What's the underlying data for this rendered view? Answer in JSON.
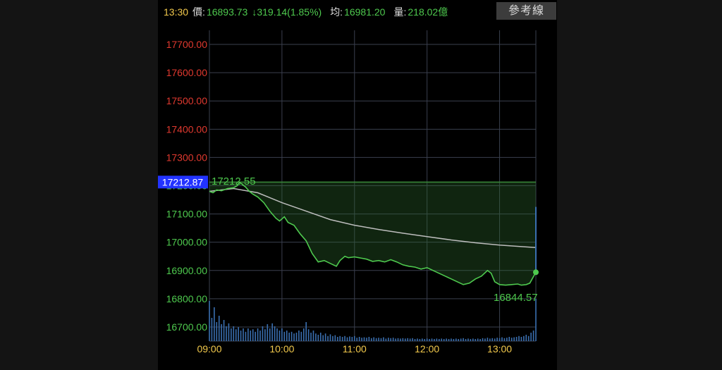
{
  "header": {
    "time": "13:30",
    "price_label": "價:",
    "price": "16893.73",
    "change": "↓319.14(1.85%)",
    "avg_label": "均:",
    "avg": "16981.20",
    "volume_label": "量:",
    "volume": "218.02億",
    "ref_button": "參考線"
  },
  "colors": {
    "up": "#e0392f",
    "down": "#4ec94e",
    "avg_line": "#bdbdbd",
    "volume_bar": "#3a6fb0",
    "ref_tag_bg": "#2233ff",
    "time_label": "#f2c94c",
    "grid": "#3a3f4e"
  },
  "chart_data": {
    "type": "line",
    "reference_price": 17212.87,
    "reference_label": "17212.87",
    "high_label": "17212.55",
    "last_label": "16844.57",
    "ylim": [
      16650,
      17750
    ],
    "y_ticks": [
      {
        "value": 17700,
        "label": "17700.00"
      },
      {
        "value": 17600,
        "label": "17600.00"
      },
      {
        "value": 17500,
        "label": "17500.00"
      },
      {
        "value": 17400,
        "label": "17400.00"
      },
      {
        "value": 17300,
        "label": "17300.00"
      },
      {
        "value": 17200,
        "label": "17200.00"
      },
      {
        "value": 17100,
        "label": "17100.00"
      },
      {
        "value": 17000,
        "label": "17000.00"
      },
      {
        "value": 16900,
        "label": "16900.00"
      },
      {
        "value": 16800,
        "label": "16800.00"
      },
      {
        "value": 16700,
        "label": "16700.00"
      }
    ],
    "x_ticks": [
      "09:00",
      "10:00",
      "11:00",
      "12:00",
      "13:00"
    ],
    "x_range_minutes": [
      0,
      270
    ],
    "price_series": [
      [
        0,
        17180
      ],
      [
        3,
        17175
      ],
      [
        6,
        17185
      ],
      [
        10,
        17182
      ],
      [
        15,
        17190
      ],
      [
        20,
        17193
      ],
      [
        23,
        17200
      ],
      [
        25,
        17212
      ],
      [
        27,
        17205
      ],
      [
        30,
        17195
      ],
      [
        33,
        17180
      ],
      [
        36,
        17170
      ],
      [
        40,
        17160
      ],
      [
        45,
        17140
      ],
      [
        50,
        17110
      ],
      [
        55,
        17085
      ],
      [
        58,
        17075
      ],
      [
        62,
        17090
      ],
      [
        65,
        17070
      ],
      [
        70,
        17060
      ],
      [
        75,
        17030
      ],
      [
        80,
        17005
      ],
      [
        85,
        16960
      ],
      [
        90,
        16930
      ],
      [
        95,
        16935
      ],
      [
        100,
        16925
      ],
      [
        105,
        16915
      ],
      [
        108,
        16935
      ],
      [
        112,
        16950
      ],
      [
        115,
        16945
      ],
      [
        120,
        16948
      ],
      [
        125,
        16944
      ],
      [
        130,
        16940
      ],
      [
        135,
        16932
      ],
      [
        140,
        16935
      ],
      [
        145,
        16930
      ],
      [
        150,
        16938
      ],
      [
        155,
        16930
      ],
      [
        160,
        16920
      ],
      [
        165,
        16915
      ],
      [
        170,
        16912
      ],
      [
        175,
        16905
      ],
      [
        180,
        16910
      ],
      [
        185,
        16900
      ],
      [
        190,
        16890
      ],
      [
        195,
        16880
      ],
      [
        200,
        16870
      ],
      [
        205,
        16860
      ],
      [
        210,
        16850
      ],
      [
        215,
        16855
      ],
      [
        220,
        16870
      ],
      [
        225,
        16880
      ],
      [
        230,
        16900
      ],
      [
        233,
        16890
      ],
      [
        236,
        16860
      ],
      [
        240,
        16850
      ],
      [
        245,
        16848
      ],
      [
        250,
        16850
      ],
      [
        255,
        16852
      ],
      [
        258,
        16848
      ],
      [
        262,
        16850
      ],
      [
        265,
        16855
      ],
      [
        270,
        16893.73
      ]
    ],
    "avg_series": [
      [
        0,
        17180
      ],
      [
        20,
        17190
      ],
      [
        40,
        17175
      ],
      [
        60,
        17140
      ],
      [
        80,
        17110
      ],
      [
        100,
        17080
      ],
      [
        120,
        17060
      ],
      [
        140,
        17045
      ],
      [
        160,
        17032
      ],
      [
        180,
        17020
      ],
      [
        200,
        17008
      ],
      [
        220,
        16998
      ],
      [
        240,
        16990
      ],
      [
        260,
        16984
      ],
      [
        270,
        16981.2
      ]
    ],
    "volume_series": [
      [
        0,
        0.95
      ],
      [
        2,
        0.55
      ],
      [
        4,
        0.8
      ],
      [
        6,
        0.45
      ],
      [
        8,
        0.6
      ],
      [
        10,
        0.4
      ],
      [
        12,
        0.5
      ],
      [
        14,
        0.35
      ],
      [
        16,
        0.42
      ],
      [
        18,
        0.3
      ],
      [
        20,
        0.35
      ],
      [
        22,
        0.28
      ],
      [
        24,
        0.33
      ],
      [
        26,
        0.25
      ],
      [
        28,
        0.3
      ],
      [
        30,
        0.22
      ],
      [
        32,
        0.3
      ],
      [
        34,
        0.25
      ],
      [
        36,
        0.28
      ],
      [
        38,
        0.22
      ],
      [
        40,
        0.3
      ],
      [
        42,
        0.25
      ],
      [
        44,
        0.35
      ],
      [
        46,
        0.28
      ],
      [
        48,
        0.4
      ],
      [
        50,
        0.3
      ],
      [
        52,
        0.42
      ],
      [
        54,
        0.35
      ],
      [
        56,
        0.3
      ],
      [
        58,
        0.25
      ],
      [
        60,
        0.3
      ],
      [
        62,
        0.22
      ],
      [
        64,
        0.25
      ],
      [
        66,
        0.2
      ],
      [
        68,
        0.22
      ],
      [
        70,
        0.18
      ],
      [
        72,
        0.2
      ],
      [
        74,
        0.25
      ],
      [
        76,
        0.22
      ],
      [
        78,
        0.3
      ],
      [
        80,
        0.45
      ],
      [
        82,
        0.28
      ],
      [
        84,
        0.2
      ],
      [
        86,
        0.25
      ],
      [
        88,
        0.18
      ],
      [
        90,
        0.15
      ],
      [
        92,
        0.2
      ],
      [
        94,
        0.14
      ],
      [
        96,
        0.18
      ],
      [
        98,
        0.12
      ],
      [
        100,
        0.16
      ],
      [
        102,
        0.12
      ],
      [
        104,
        0.14
      ],
      [
        106,
        0.1
      ],
      [
        108,
        0.12
      ],
      [
        110,
        0.1
      ],
      [
        112,
        0.12
      ],
      [
        114,
        0.09
      ],
      [
        116,
        0.11
      ],
      [
        118,
        0.1
      ],
      [
        120,
        0.12
      ],
      [
        122,
        0.08
      ],
      [
        124,
        0.1
      ],
      [
        126,
        0.08
      ],
      [
        128,
        0.09
      ],
      [
        130,
        0.08
      ],
      [
        132,
        0.1
      ],
      [
        134,
        0.07
      ],
      [
        136,
        0.09
      ],
      [
        138,
        0.07
      ],
      [
        140,
        0.08
      ],
      [
        142,
        0.07
      ],
      [
        144,
        0.09
      ],
      [
        146,
        0.06
      ],
      [
        148,
        0.08
      ],
      [
        150,
        0.07
      ],
      [
        152,
        0.08
      ],
      [
        154,
        0.06
      ],
      [
        156,
        0.07
      ],
      [
        158,
        0.06
      ],
      [
        160,
        0.07
      ],
      [
        162,
        0.06
      ],
      [
        164,
        0.07
      ],
      [
        166,
        0.06
      ],
      [
        168,
        0.07
      ],
      [
        170,
        0.05
      ],
      [
        172,
        0.06
      ],
      [
        174,
        0.05
      ],
      [
        176,
        0.06
      ],
      [
        178,
        0.05
      ],
      [
        180,
        0.06
      ],
      [
        182,
        0.05
      ],
      [
        184,
        0.06
      ],
      [
        186,
        0.05
      ],
      [
        188,
        0.06
      ],
      [
        190,
        0.05
      ],
      [
        192,
        0.06
      ],
      [
        194,
        0.05
      ],
      [
        196,
        0.06
      ],
      [
        198,
        0.05
      ],
      [
        200,
        0.06
      ],
      [
        202,
        0.05
      ],
      [
        204,
        0.06
      ],
      [
        206,
        0.05
      ],
      [
        208,
        0.06
      ],
      [
        210,
        0.07
      ],
      [
        212,
        0.05
      ],
      [
        214,
        0.06
      ],
      [
        216,
        0.05
      ],
      [
        218,
        0.06
      ],
      [
        220,
        0.05
      ],
      [
        222,
        0.06
      ],
      [
        224,
        0.05
      ],
      [
        226,
        0.07
      ],
      [
        228,
        0.06
      ],
      [
        230,
        0.08
      ],
      [
        232,
        0.06
      ],
      [
        234,
        0.07
      ],
      [
        236,
        0.06
      ],
      [
        238,
        0.08
      ],
      [
        240,
        0.07
      ],
      [
        242,
        0.09
      ],
      [
        244,
        0.07
      ],
      [
        246,
        0.08
      ],
      [
        248,
        0.1
      ],
      [
        250,
        0.08
      ],
      [
        252,
        0.09
      ],
      [
        254,
        0.1
      ],
      [
        256,
        0.12
      ],
      [
        258,
        0.1
      ],
      [
        260,
        0.12
      ],
      [
        262,
        0.15
      ],
      [
        264,
        0.12
      ],
      [
        266,
        0.2
      ],
      [
        268,
        0.25
      ],
      [
        270,
        1.0
      ]
    ]
  }
}
